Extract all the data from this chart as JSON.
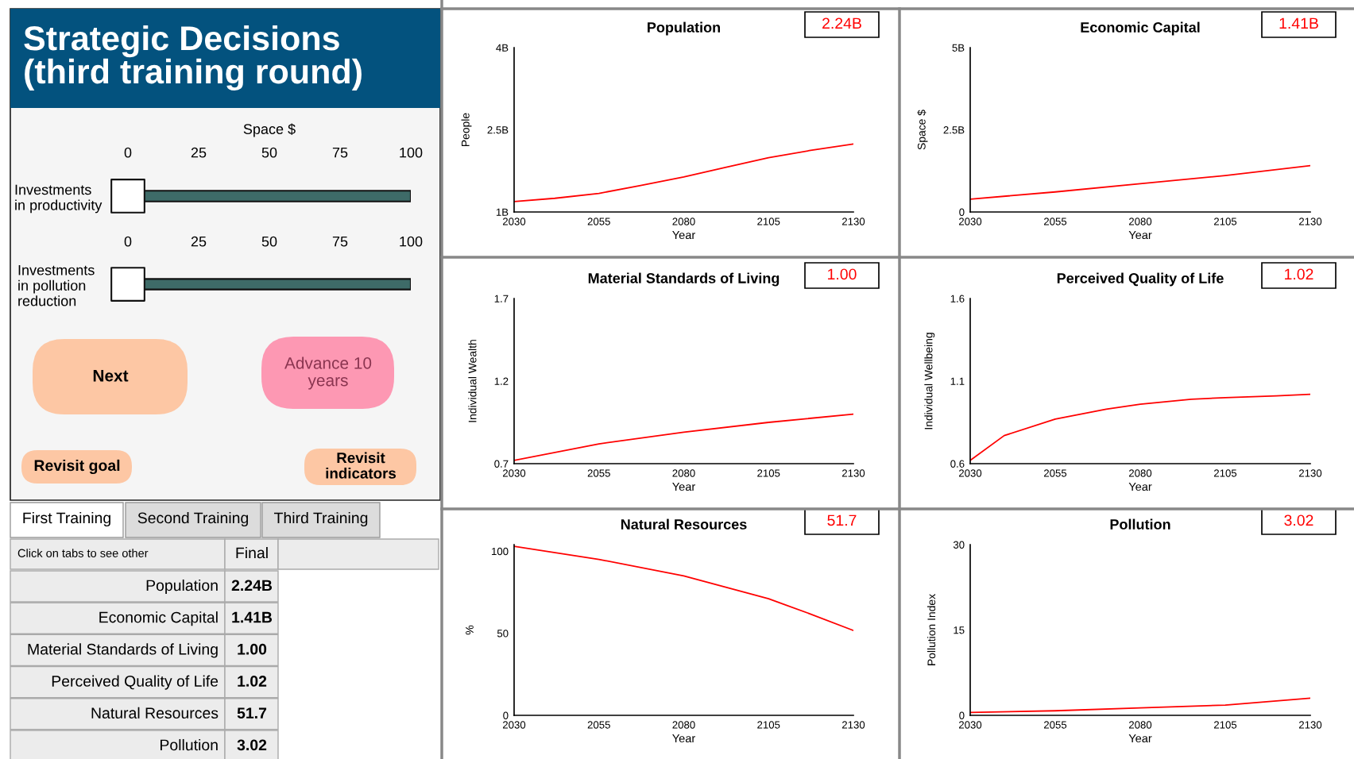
{
  "chart_data": [
    {
      "type": "other",
      "title": "Strategic Decisions\n(third training round)",
      "annotations": [
        "Next",
        "Advance 10\nyears",
        "Revisit goal",
        "Revisit\nindicators",
        "First Training",
        "Second Training",
        "Third Training",
        "Click on tabs to see other",
        "Final",
        "Population",
        "2.24B",
        "Economic Capital",
        "1.41B",
        "Material Standards of Living",
        "1.00",
        "Perceived Quality of Life",
        "1.02",
        "Natural Resources",
        "51.7",
        "Pollution",
        "3.02"
      ]
    },
    {
      "type": "scatter",
      "orientation": "horizontal",
      "title": "Space $",
      "categories": [
        "Investments\nin productivity"
      ],
      "values": [
        0
      ],
      "color": "#ffffff",
      "marker": "square",
      "xlim": [
        0,
        100
      ],
      "xticks": [
        0,
        25,
        50,
        75,
        100
      ],
      "bands": [
        {
          "axis": "x",
          "from": 0,
          "to": 100,
          "color": "#3e6b68"
        }
      ]
    },
    {
      "type": "scatter",
      "orientation": "horizontal",
      "categories": [
        "Investments\nin pollution\nreduction"
      ],
      "values": [
        0
      ],
      "color": "#ffffff",
      "marker": "square",
      "xlim": [
        0,
        100
      ],
      "xticks": [
        0,
        25,
        50,
        75,
        100
      ],
      "bands": [
        {
          "axis": "x",
          "from": 0,
          "to": 100,
          "color": "#3e6b68"
        }
      ]
    },
    {
      "type": "line",
      "title": "Population",
      "xlabel": "Year",
      "ylabel": "People",
      "x": [
        2030,
        2042,
        2055,
        2067,
        2080,
        2092,
        2105,
        2117,
        2130
      ],
      "series": [
        {
          "color": "#ff0000",
          "values": [
            1.19,
            1.25,
            1.34,
            1.48,
            1.64,
            1.81,
            1.99,
            2.12,
            2.24
          ]
        }
      ],
      "xlim": [
        2030,
        2130
      ],
      "xticks": [
        2030,
        2055,
        2080,
        2105,
        2130
      ],
      "ylim": [
        1,
        4
      ],
      "yticks": [
        {
          "value": 1,
          "label": "1B"
        },
        {
          "value": 2.5,
          "label": "2.5B"
        },
        {
          "value": 4,
          "label": "4B"
        }
      ],
      "annotations": [
        "2.24B"
      ],
      "grid": false
    },
    {
      "type": "line",
      "title": "Economic Capital",
      "xlabel": "Year",
      "ylabel": "Space $",
      "x": [
        2030,
        2055,
        2080,
        2105,
        2130
      ],
      "series": [
        {
          "color": "#ff0000",
          "values": [
            0.39,
            0.61,
            0.86,
            1.11,
            1.41
          ]
        }
      ],
      "xlim": [
        2030,
        2130
      ],
      "xticks": [
        2030,
        2055,
        2080,
        2105,
        2130
      ],
      "ylim": [
        0,
        5
      ],
      "yticks": [
        0,
        {
          "value": 2.5,
          "label": "2.5B"
        },
        {
          "value": 5,
          "label": "5B"
        }
      ],
      "annotations": [
        "1.41B"
      ],
      "grid": false
    },
    {
      "type": "line",
      "title": "Material Standards of Living",
      "xlabel": "Year",
      "ylabel": "Individual Wealth",
      "x": [
        2030,
        2055,
        2080,
        2105,
        2130
      ],
      "series": [
        {
          "color": "#ff0000",
          "values": [
            0.72,
            0.82,
            0.89,
            0.95,
            1.0
          ]
        }
      ],
      "xlim": [
        2030,
        2130
      ],
      "xticks": [
        2030,
        2055,
        2080,
        2105,
        2130
      ],
      "ylim": [
        0.7,
        1.7
      ],
      "yticks": [
        0.7,
        1.2,
        1.7
      ],
      "annotations": [
        "1.00"
      ],
      "grid": false
    },
    {
      "type": "line",
      "title": "Perceived Quality of Life",
      "xlabel": "Year",
      "ylabel": "Individual Wellbeing",
      "x": [
        2030,
        2040,
        2055,
        2070,
        2080,
        2095,
        2105,
        2120,
        2130
      ],
      "series": [
        {
          "color": "#ff0000",
          "values": [
            0.62,
            0.77,
            0.87,
            0.93,
            0.96,
            0.99,
            1.0,
            1.01,
            1.02
          ]
        }
      ],
      "xlim": [
        2030,
        2130
      ],
      "xticks": [
        2030,
        2055,
        2080,
        2105,
        2130
      ],
      "ylim": [
        0.6,
        1.6
      ],
      "yticks": [
        0.6,
        1.1,
        1.6
      ],
      "annotations": [
        "1.02"
      ],
      "grid": false
    },
    {
      "type": "line",
      "title": "Natural Resources",
      "xlabel": "Year",
      "ylabel": "%",
      "x": [
        2030,
        2055,
        2080,
        2105,
        2117,
        2130
      ],
      "series": [
        {
          "color": "#ff0000",
          "values": [
            103,
            95,
            85,
            71,
            62,
            51.7
          ]
        }
      ],
      "xlim": [
        2030,
        2130
      ],
      "xticks": [
        2030,
        2055,
        2080,
        2105,
        2130
      ],
      "ylim": [
        0,
        104
      ],
      "yticks": [
        0,
        50,
        100
      ],
      "annotations": [
        "51.7"
      ],
      "grid": false
    },
    {
      "type": "line",
      "title": "Pollution",
      "xlabel": "Year",
      "ylabel": "Pollution Index",
      "x": [
        2030,
        2055,
        2080,
        2105,
        2130
      ],
      "series": [
        {
          "color": "#ff0000",
          "values": [
            0.5,
            0.8,
            1.3,
            1.8,
            3.02
          ]
        }
      ],
      "xlim": [
        2030,
        2130
      ],
      "xticks": [
        2030,
        2055,
        2080,
        2105,
        2130
      ],
      "ylim": [
        0,
        30
      ],
      "yticks": [
        0,
        15,
        30
      ],
      "annotations": [
        "3.02"
      ],
      "grid": false
    }
  ]
}
